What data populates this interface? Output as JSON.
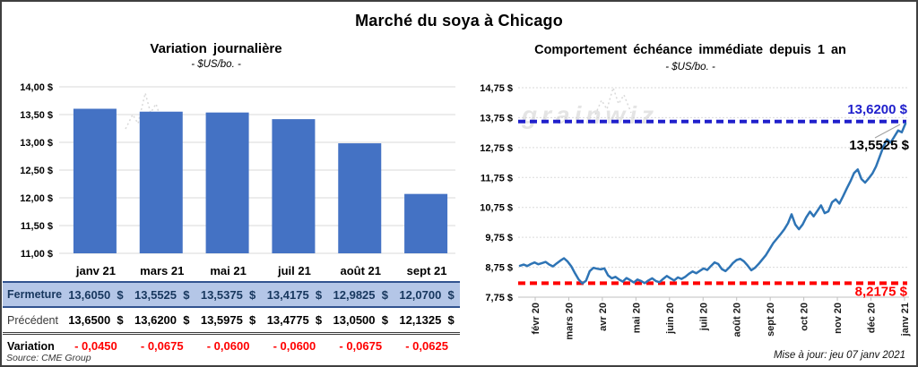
{
  "page": {
    "title": "Marché du soya à Chicago",
    "source": "Source: CME Group",
    "updated": "Mise à jour: jeu 07 janv 2021",
    "watermark": "grainwiz"
  },
  "colors": {
    "bar": "#4472C4",
    "line": "#2E74B5",
    "ref_top": "#2020CC",
    "ref_bottom": "#FF0000",
    "grid": "#DADADA",
    "axis": "#BFBFBF",
    "fermeture_bg": "#B4C6E7",
    "navy": "#17375E",
    "variation_red": "#FF0000",
    "watermark": "#CFCFCF"
  },
  "table": {
    "header": [
      "janv 21",
      "mars 21",
      "mai 21",
      "juil 21",
      "août 21",
      "sept 21"
    ],
    "rows": [
      {
        "key": "fermeture",
        "label": "Fermeture",
        "values": [
          "13,6050  $",
          "13,5525  $",
          "13,5375  $",
          "13,4175  $",
          "12,9825  $",
          "12,0700  $"
        ]
      },
      {
        "key": "precedent",
        "label": "Précédent",
        "values": [
          "13,6500  $",
          "13,6200  $",
          "13,5975  $",
          "13,4775  $",
          "13,0500  $",
          "12,1325  $"
        ]
      },
      {
        "key": "variation",
        "label": "Variation",
        "values": [
          "- 0,0450",
          "- 0,0675",
          "- 0,0600",
          "- 0,0600",
          "- 0,0675",
          "- 0,0625"
        ]
      }
    ]
  },
  "chart_data": [
    {
      "type": "bar",
      "title": "Variation  journalière",
      "subtitle": "- $US/bo. -",
      "categories": [
        "janv 21",
        "mars 21",
        "mai 21",
        "juil 21",
        "août 21",
        "sept 21"
      ],
      "values": [
        13.605,
        13.5525,
        13.5375,
        13.4175,
        12.9825,
        12.07
      ],
      "ylim": [
        11.0,
        14.0
      ],
      "grid": "on",
      "legend": "none",
      "yticks": [
        {
          "value": 14.0,
          "label": "14,00 $"
        },
        {
          "value": 13.5,
          "label": "13,50 $"
        },
        {
          "value": 13.0,
          "label": "13,00 $"
        },
        {
          "value": 12.5,
          "label": "12,50 $"
        },
        {
          "value": 12.0,
          "label": "12,00 $"
        },
        {
          "value": 11.5,
          "label": "11,50 $"
        },
        {
          "value": 11.0,
          "label": "11,00 $"
        }
      ]
    },
    {
      "type": "line",
      "title": "Comportement  échéance  immédiate  depuis  1  an",
      "subtitle": "- $US/bo. -",
      "x_labels": [
        "févr 20",
        "mars 20",
        "avr 20",
        "mai 20",
        "juin 20",
        "juil 20",
        "août 20",
        "sept 20",
        "oct 20",
        "nov 20",
        "déc 20",
        "janv 21"
      ],
      "ylim": [
        7.75,
        14.75
      ],
      "grid": "on",
      "legend": "none",
      "yticks": [
        {
          "value": 14.75,
          "label": "14,75 $"
        },
        {
          "value": 13.75,
          "label": "13,75 $"
        },
        {
          "value": 12.75,
          "label": "12,75 $"
        },
        {
          "value": 11.75,
          "label": "11,75 $"
        },
        {
          "value": 10.75,
          "label": "10,75 $"
        },
        {
          "value": 9.75,
          "label": "9,75 $"
        },
        {
          "value": 8.75,
          "label": "8,75 $"
        },
        {
          "value": 7.75,
          "label": "7,75 $"
        }
      ],
      "ref_lines": [
        {
          "id": "high",
          "value": 13.62,
          "label": "13,6200 $"
        },
        {
          "id": "low",
          "value": 8.2175,
          "label": "8,2175 $"
        }
      ],
      "last_value_label": "13,5525 $",
      "values": [
        8.8,
        8.84,
        8.79,
        8.86,
        8.91,
        8.85,
        8.89,
        8.93,
        8.84,
        8.78,
        8.88,
        8.97,
        9.05,
        8.94,
        8.78,
        8.55,
        8.34,
        8.21,
        8.3,
        8.62,
        8.73,
        8.7,
        8.68,
        8.71,
        8.48,
        8.38,
        8.43,
        8.34,
        8.27,
        8.39,
        8.32,
        8.24,
        8.34,
        8.29,
        8.22,
        8.31,
        8.38,
        8.29,
        8.25,
        8.36,
        8.46,
        8.38,
        8.31,
        8.41,
        8.36,
        8.43,
        8.53,
        8.61,
        8.55,
        8.63,
        8.71,
        8.66,
        8.79,
        8.91,
        8.86,
        8.69,
        8.62,
        8.74,
        8.89,
        8.99,
        9.03,
        8.95,
        8.81,
        8.65,
        8.73,
        8.86,
        9.01,
        9.16,
        9.36,
        9.56,
        9.71,
        9.86,
        10.02,
        10.22,
        10.52,
        10.18,
        10.02,
        10.18,
        10.42,
        10.61,
        10.45,
        10.63,
        10.82,
        10.56,
        10.62,
        10.92,
        11.02,
        10.88,
        11.12,
        11.38,
        11.62,
        11.9,
        12.02,
        11.7,
        11.58,
        11.72,
        11.88,
        12.12,
        12.45,
        12.78,
        13.02,
        12.92,
        13.12,
        13.32,
        13.26,
        13.5525
      ]
    }
  ]
}
